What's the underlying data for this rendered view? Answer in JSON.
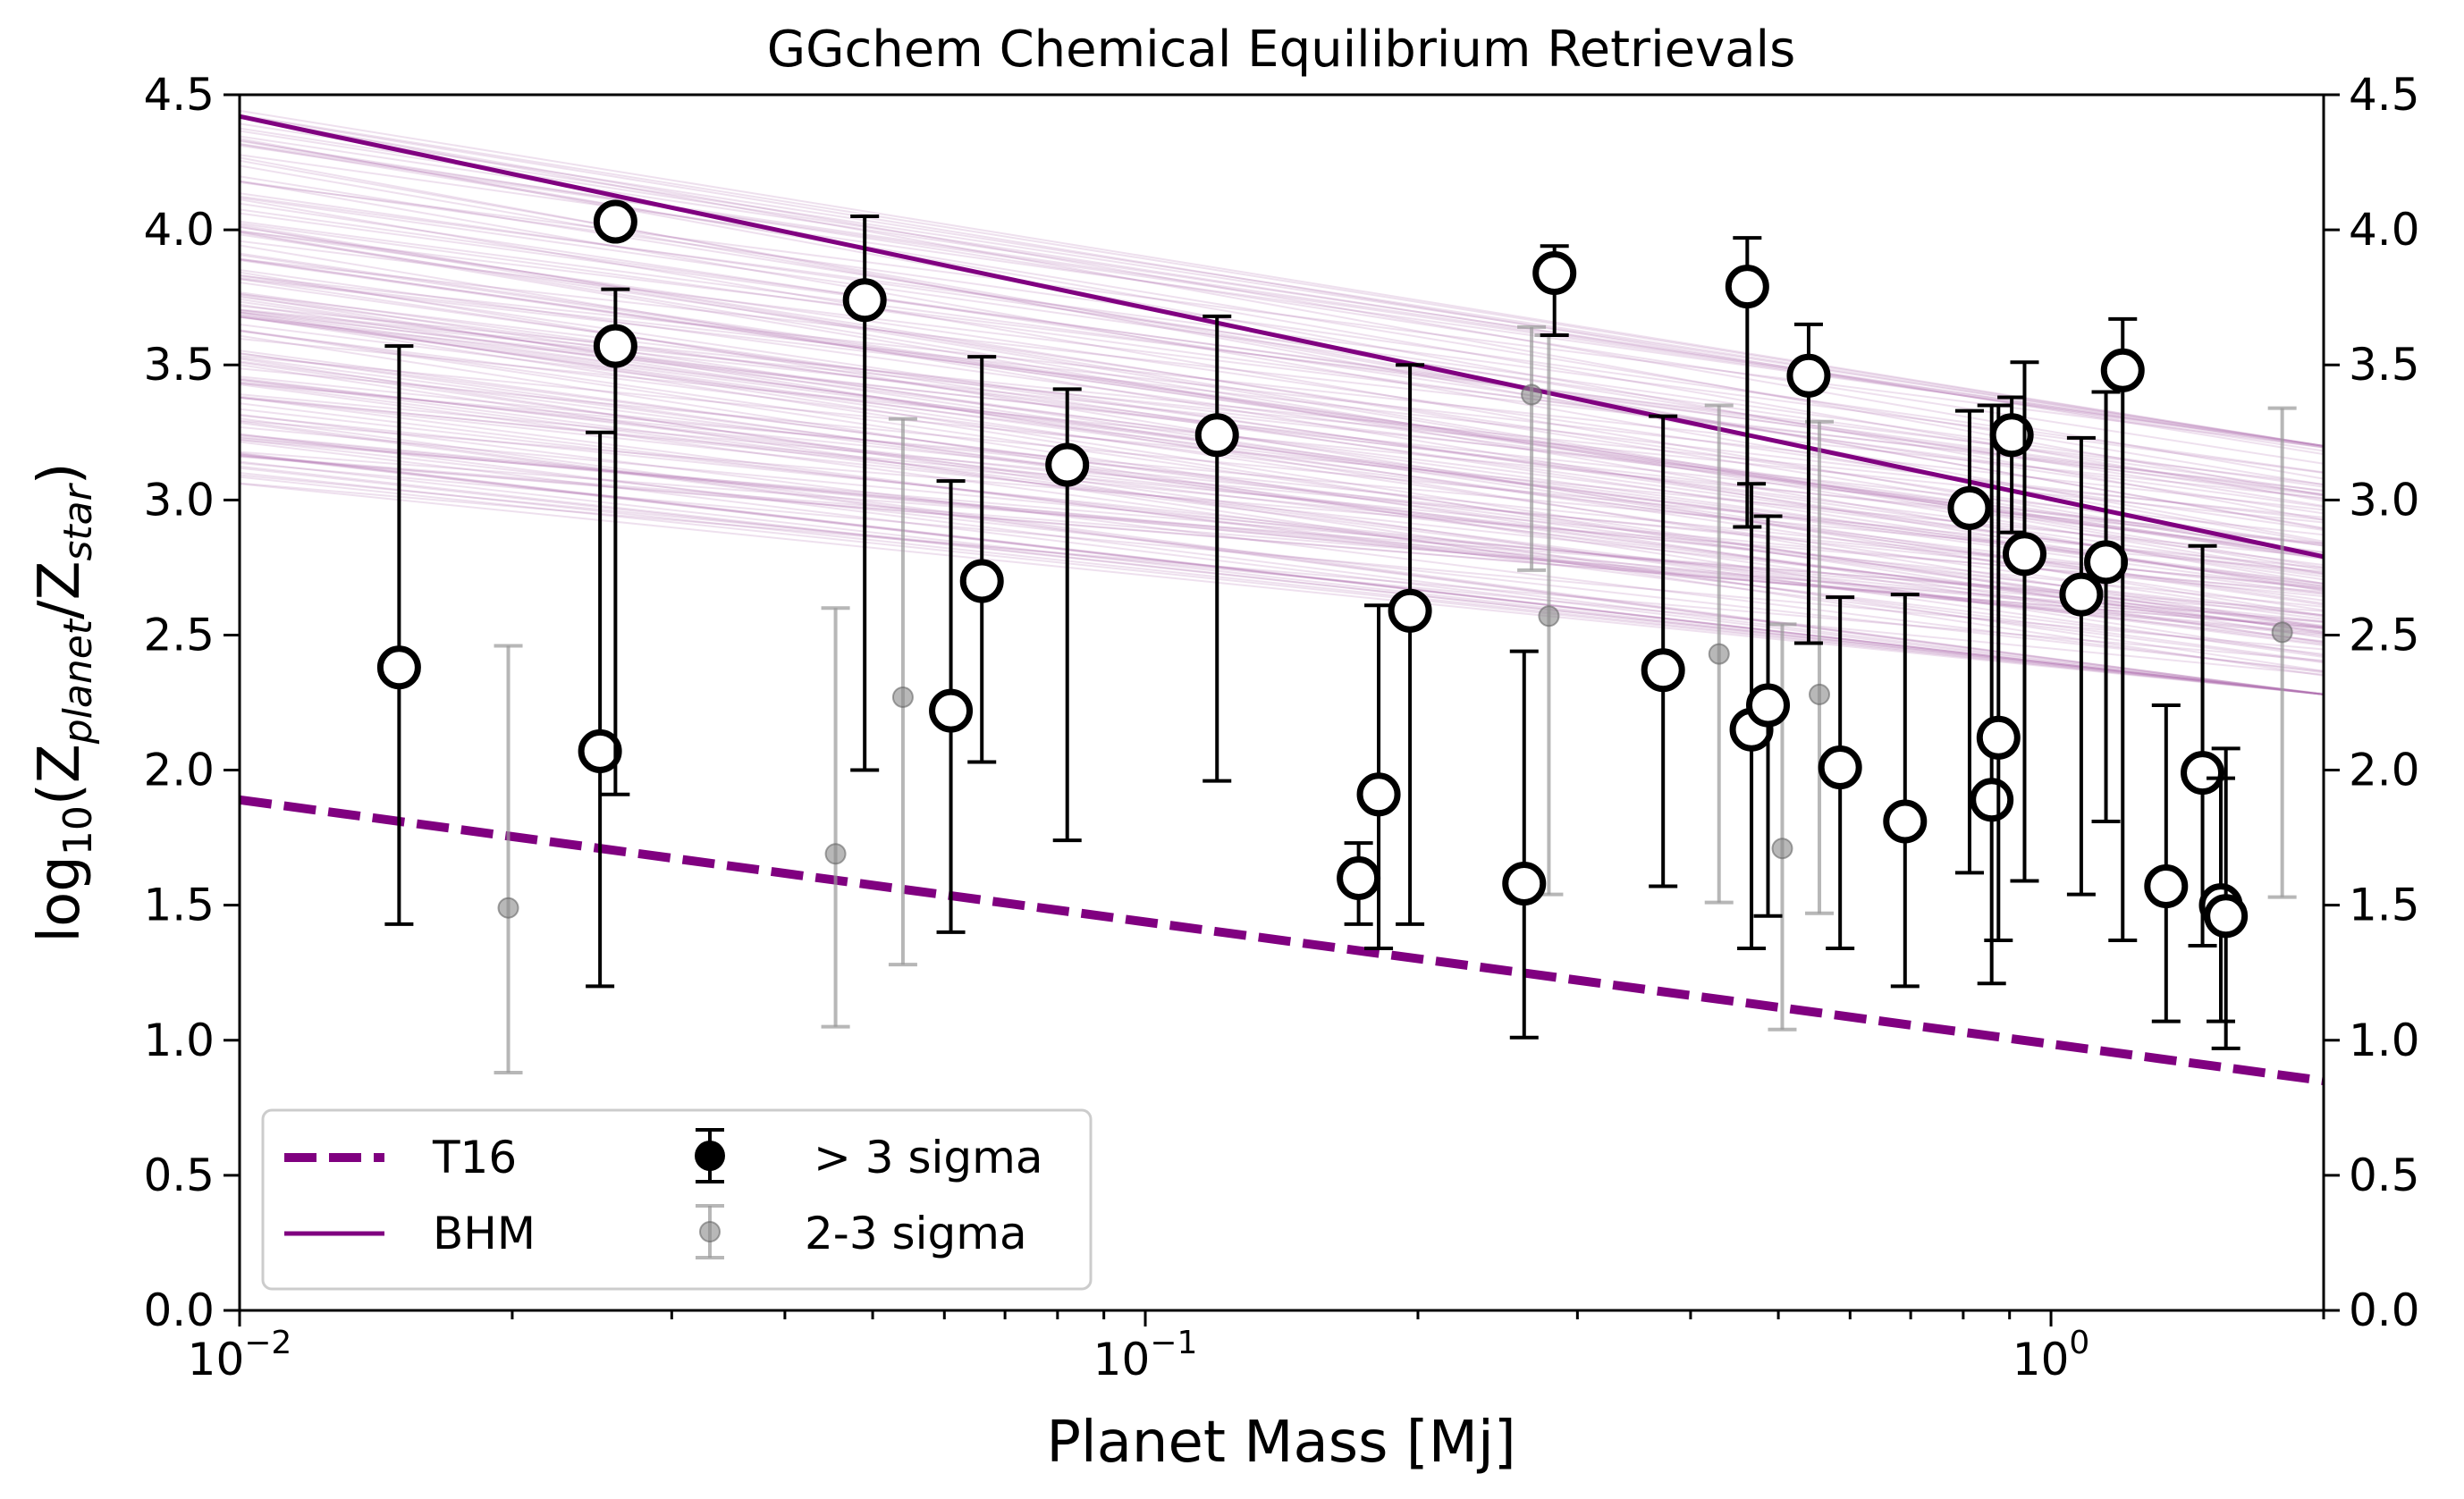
{
  "chart_data": {
    "type": "scatter",
    "title": "GGchem Chemical Equilibrium Retrievals",
    "xlabel": "Planet Mass [Mj]",
    "ylabel": {
      "prefix": "log",
      "prefix_sub": "10",
      "open": "(Z",
      "sub1": "planet",
      "mid": "/Z",
      "sub2": "star",
      "close": ")"
    },
    "x_scale": "log",
    "xlim": [
      0.01,
      2.0
    ],
    "ylim": [
      0.0,
      4.5
    ],
    "x_ticks": [
      {
        "value": 0.01,
        "base": "10",
        "exp": "−2"
      },
      {
        "value": 0.1,
        "base": "10",
        "exp": "−1"
      },
      {
        "value": 1.0,
        "base": "10",
        "exp": "0"
      }
    ],
    "y_ticks": [
      "0.0",
      "0.5",
      "1.0",
      "1.5",
      "2.0",
      "2.5",
      "3.0",
      "3.5",
      "4.0",
      "4.5"
    ],
    "legend": {
      "placement": "lower-left",
      "entries": [
        {
          "label": "T16",
          "style": "dashed-line"
        },
        {
          "label": "BHM",
          "style": "solid-line"
        },
        {
          "label": "$>$3 sigma",
          "display": "> 3 sigma",
          "style": "black-errorbar"
        },
        {
          "label": "2-3 sigma",
          "display": "2-3 sigma",
          "style": "gray-errorbar"
        }
      ]
    },
    "colors": {
      "purple": "#800080",
      "bands": "#b070b0",
      "gray": "#999999",
      "black": "#000000"
    },
    "lines": {
      "T16": {
        "x": [
          0.01,
          2.0
        ],
        "y": [
          1.89,
          0.85
        ]
      },
      "BHM": {
        "x": [
          0.01,
          2.0
        ],
        "y": [
          4.42,
          2.79
        ]
      }
    },
    "posterior_band": {
      "count": 140,
      "y_at_0_01": [
        3.05,
        4.48
      ],
      "y_at_2_0": [
        2.28,
        3.2
      ]
    },
    "series": [
      {
        "name": "> 3 sigma",
        "points": [
          {
            "x": 0.015,
            "y": 2.38,
            "lo": 1.43,
            "hi": 3.57
          },
          {
            "x": 0.025,
            "y": 2.07,
            "lo": 1.2,
            "hi": 3.25
          },
          {
            "x": 0.026,
            "y": 3.57,
            "lo": 1.91,
            "hi": 3.78
          },
          {
            "x": 0.026,
            "y": 4.03,
            "lo": 3.98,
            "hi": 4.07
          },
          {
            "x": 0.049,
            "y": 3.74,
            "lo": 2.0,
            "hi": 4.05
          },
          {
            "x": 0.061,
            "y": 2.22,
            "lo": 1.4,
            "hi": 3.07
          },
          {
            "x": 0.066,
            "y": 2.7,
            "lo": 2.03,
            "hi": 3.53
          },
          {
            "x": 0.082,
            "y": 3.13,
            "lo": 1.74,
            "hi": 3.41
          },
          {
            "x": 0.12,
            "y": 3.24,
            "lo": 1.96,
            "hi": 3.68
          },
          {
            "x": 0.172,
            "y": 1.6,
            "lo": 1.43,
            "hi": 1.73
          },
          {
            "x": 0.181,
            "y": 1.91,
            "lo": 1.34,
            "hi": 2.61
          },
          {
            "x": 0.196,
            "y": 2.59,
            "lo": 1.43,
            "hi": 3.5
          },
          {
            "x": 0.262,
            "y": 1.58,
            "lo": 1.01,
            "hi": 2.44
          },
          {
            "x": 0.283,
            "y": 3.84,
            "lo": 3.61,
            "hi": 3.94
          },
          {
            "x": 0.373,
            "y": 2.37,
            "lo": 1.57,
            "hi": 3.31
          },
          {
            "x": 0.462,
            "y": 3.79,
            "lo": 2.9,
            "hi": 3.97
          },
          {
            "x": 0.467,
            "y": 2.15,
            "lo": 1.34,
            "hi": 3.06
          },
          {
            "x": 0.487,
            "y": 2.24,
            "lo": 1.46,
            "hi": 2.94
          },
          {
            "x": 0.54,
            "y": 3.46,
            "lo": 2.47,
            "hi": 3.65
          },
          {
            "x": 0.585,
            "y": 2.01,
            "lo": 1.34,
            "hi": 2.64
          },
          {
            "x": 0.69,
            "y": 1.81,
            "lo": 1.2,
            "hi": 2.65
          },
          {
            "x": 0.813,
            "y": 2.97,
            "lo": 1.62,
            "hi": 3.33
          },
          {
            "x": 0.86,
            "y": 1.89,
            "lo": 1.21,
            "hi": 3.35
          },
          {
            "x": 0.875,
            "y": 2.12,
            "lo": 1.37,
            "hi": 3.35
          },
          {
            "x": 0.905,
            "y": 3.24,
            "lo": 2.88,
            "hi": 3.38
          },
          {
            "x": 0.935,
            "y": 2.8,
            "lo": 1.59,
            "hi": 3.51
          },
          {
            "x": 1.08,
            "y": 2.65,
            "lo": 1.54,
            "hi": 3.23
          },
          {
            "x": 1.15,
            "y": 2.77,
            "lo": 1.81,
            "hi": 3.4
          },
          {
            "x": 1.2,
            "y": 3.48,
            "lo": 1.37,
            "hi": 3.67
          },
          {
            "x": 1.34,
            "y": 1.57,
            "lo": 1.07,
            "hi": 2.24
          },
          {
            "x": 1.47,
            "y": 1.99,
            "lo": 1.35,
            "hi": 2.83
          },
          {
            "x": 1.54,
            "y": 1.5,
            "lo": 1.07,
            "hi": 1.97
          },
          {
            "x": 1.56,
            "y": 1.46,
            "lo": 0.97,
            "hi": 2.08
          }
        ]
      },
      {
        "name": "2-3 sigma",
        "points": [
          {
            "x": 0.0198,
            "y": 1.49,
            "lo": 0.88,
            "hi": 2.46
          },
          {
            "x": 0.0455,
            "y": 1.69,
            "lo": 1.05,
            "hi": 2.6
          },
          {
            "x": 0.054,
            "y": 2.27,
            "lo": 1.28,
            "hi": 3.3
          },
          {
            "x": 0.267,
            "y": 3.39,
            "lo": 2.74,
            "hi": 3.64
          },
          {
            "x": 0.279,
            "y": 2.57,
            "lo": 1.54,
            "hi": 3.61
          },
          {
            "x": 0.43,
            "y": 2.43,
            "lo": 1.51,
            "hi": 3.35
          },
          {
            "x": 0.505,
            "y": 1.71,
            "lo": 1.04,
            "hi": 2.54
          },
          {
            "x": 0.555,
            "y": 2.28,
            "lo": 1.47,
            "hi": 3.29
          },
          {
            "x": 1.8,
            "y": 2.51,
            "lo": 1.53,
            "hi": 3.34
          }
        ]
      }
    ]
  }
}
